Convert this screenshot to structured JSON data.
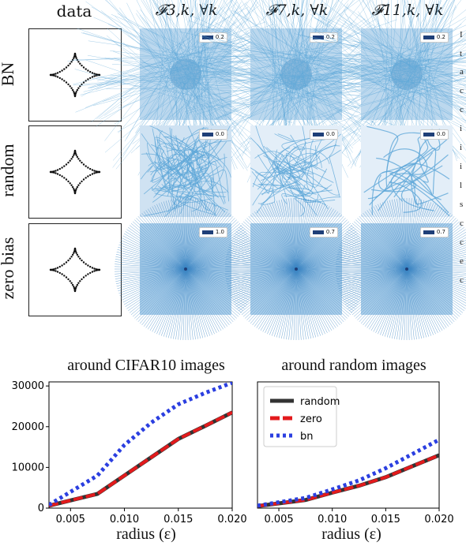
{
  "top_figure": {
    "column_headers": [
      "data",
      "𝓕3,k, ∀k",
      "𝓕7,k, ∀k",
      "𝓕11,k, ∀k"
    ],
    "rows": [
      {
        "label": "BN",
        "legend_values": [
          "0.2",
          "0.2",
          "0.2"
        ]
      },
      {
        "label": "random",
        "legend_values": [
          "0.0",
          "0.0",
          "0.0"
        ]
      },
      {
        "label": "zero bias",
        "legend_values": [
          "1.0",
          "0.7",
          "0.7"
        ]
      }
    ],
    "line_color": "#5fa8d8",
    "legend_swatch_color": "#1f3f78"
  },
  "cut_off_text": [
    "I",
    "t",
    "a",
    "c",
    "c",
    "i",
    "i",
    "i",
    "l",
    "s",
    "c",
    "c",
    "e",
    "c"
  ],
  "chart_data": [
    {
      "type": "line",
      "title": "around CIFAR10 images",
      "xlabel": "radius (ε)",
      "ylabel": "",
      "xlim": [
        0.003,
        0.02
      ],
      "ylim": [
        0,
        31000
      ],
      "xticks": [
        "0.005",
        "0.010",
        "0.015",
        "0.020"
      ],
      "yticks": [
        "0",
        "10000",
        "20000",
        "30000"
      ],
      "series": [
        {
          "name": "random",
          "color": "#333333",
          "style": "solid",
          "x": [
            0.003,
            0.0075,
            0.01,
            0.0125,
            0.015,
            0.0175,
            0.02
          ],
          "y": [
            600,
            3500,
            8000,
            12500,
            17000,
            20200,
            23500
          ]
        },
        {
          "name": "zero",
          "color": "#e31a1c",
          "style": "dashed",
          "x": [
            0.003,
            0.0075,
            0.01,
            0.0125,
            0.015,
            0.0175,
            0.02
          ],
          "y": [
            600,
            3500,
            8000,
            12500,
            17000,
            20200,
            23500
          ]
        },
        {
          "name": "bn",
          "color": "#2b3fe0",
          "style": "dotted",
          "x": [
            0.003,
            0.0075,
            0.01,
            0.0125,
            0.015,
            0.0175,
            0.02
          ],
          "y": [
            800,
            8000,
            15500,
            21000,
            25500,
            28300,
            30800
          ]
        }
      ]
    },
    {
      "type": "line",
      "title": "around random images",
      "xlabel": "radius (ε)",
      "ylabel": "",
      "xlim": [
        0.003,
        0.02
      ],
      "ylim": [
        0,
        31000
      ],
      "xticks": [
        "0.005",
        "0.010",
        "0.015",
        "0.020"
      ],
      "yticks": [],
      "legend": {
        "placement": "upper-left"
      },
      "series": [
        {
          "name": "random",
          "color": "#333333",
          "style": "solid",
          "x": [
            0.003,
            0.0075,
            0.01,
            0.0125,
            0.015,
            0.0175,
            0.02
          ],
          "y": [
            500,
            2000,
            3800,
            5500,
            7600,
            10300,
            13000
          ]
        },
        {
          "name": "zero",
          "color": "#e31a1c",
          "style": "dashed",
          "x": [
            0.003,
            0.0075,
            0.01,
            0.0125,
            0.015,
            0.0175,
            0.02
          ],
          "y": [
            500,
            2000,
            3800,
            5500,
            7600,
            10300,
            13000
          ]
        },
        {
          "name": "bn",
          "color": "#2b3fe0",
          "style": "dotted",
          "x": [
            0.003,
            0.0075,
            0.01,
            0.0125,
            0.015,
            0.0175,
            0.02
          ],
          "y": [
            600,
            2500,
            4600,
            6800,
            9800,
            13300,
            16800
          ]
        }
      ]
    }
  ]
}
